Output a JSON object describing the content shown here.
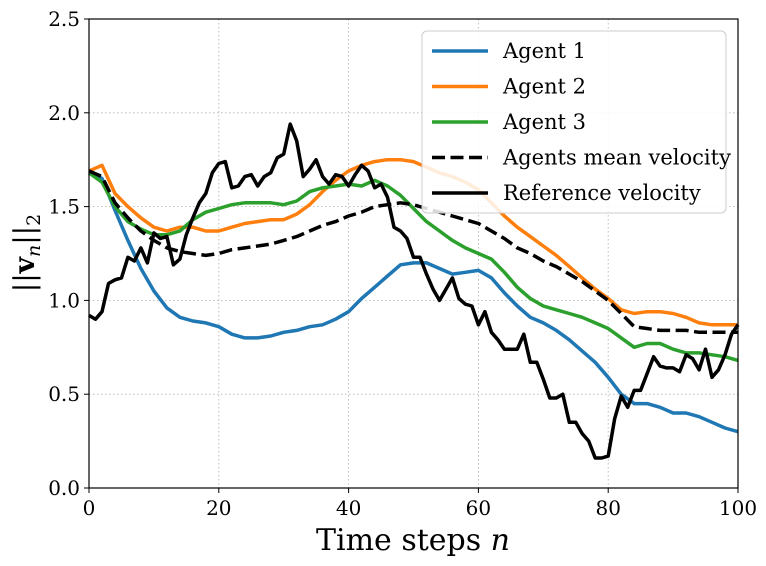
{
  "chart_data": {
    "type": "line",
    "title": "",
    "xlabel": "Time steps n",
    "ylabel": "||v_n||_2",
    "xlim": [
      0,
      100
    ],
    "ylim": [
      0,
      2.5
    ],
    "xticks": [
      0,
      20,
      40,
      60,
      80,
      100
    ],
    "yticks": [
      0.0,
      0.5,
      1.0,
      1.5,
      2.0,
      2.5
    ],
    "xtick_labels": [
      "0",
      "20",
      "40",
      "60",
      "80",
      "100"
    ],
    "ytick_labels": [
      "0.0",
      "0.5",
      "1.0",
      "1.5",
      "2.0",
      "2.5"
    ],
    "grid": true,
    "legend_position": "top-right",
    "series": [
      {
        "name": "Agent 1",
        "color": "#1f77b4",
        "dash": "solid",
        "points": [
          [
            0,
            1.69
          ],
          [
            2,
            1.65
          ],
          [
            4,
            1.48
          ],
          [
            6,
            1.32
          ],
          [
            8,
            1.17
          ],
          [
            10,
            1.05
          ],
          [
            12,
            0.96
          ],
          [
            14,
            0.91
          ],
          [
            16,
            0.89
          ],
          [
            18,
            0.88
          ],
          [
            20,
            0.86
          ],
          [
            22,
            0.82
          ],
          [
            24,
            0.8
          ],
          [
            26,
            0.8
          ],
          [
            28,
            0.81
          ],
          [
            30,
            0.83
          ],
          [
            32,
            0.84
          ],
          [
            34,
            0.86
          ],
          [
            36,
            0.87
          ],
          [
            38,
            0.9
          ],
          [
            40,
            0.94
          ],
          [
            42,
            1.01
          ],
          [
            44,
            1.07
          ],
          [
            46,
            1.13
          ],
          [
            48,
            1.19
          ],
          [
            50,
            1.2
          ],
          [
            52,
            1.2
          ],
          [
            54,
            1.17
          ],
          [
            56,
            1.14
          ],
          [
            58,
            1.15
          ],
          [
            60,
            1.16
          ],
          [
            62,
            1.12
          ],
          [
            64,
            1.04
          ],
          [
            66,
            0.97
          ],
          [
            68,
            0.91
          ],
          [
            70,
            0.88
          ],
          [
            72,
            0.84
          ],
          [
            74,
            0.79
          ],
          [
            76,
            0.73
          ],
          [
            78,
            0.67
          ],
          [
            80,
            0.59
          ],
          [
            82,
            0.5
          ],
          [
            84,
            0.45
          ],
          [
            86,
            0.45
          ],
          [
            88,
            0.43
          ],
          [
            90,
            0.4
          ],
          [
            92,
            0.4
          ],
          [
            94,
            0.38
          ],
          [
            96,
            0.35
          ],
          [
            98,
            0.32
          ],
          [
            100,
            0.3
          ]
        ]
      },
      {
        "name": "Agent 2",
        "color": "#ff7f0e",
        "dash": "solid",
        "points": [
          [
            0,
            1.69
          ],
          [
            2,
            1.72
          ],
          [
            4,
            1.57
          ],
          [
            6,
            1.5
          ],
          [
            8,
            1.44
          ],
          [
            10,
            1.39
          ],
          [
            12,
            1.37
          ],
          [
            14,
            1.39
          ],
          [
            16,
            1.39
          ],
          [
            18,
            1.37
          ],
          [
            20,
            1.37
          ],
          [
            22,
            1.39
          ],
          [
            24,
            1.41
          ],
          [
            26,
            1.42
          ],
          [
            28,
            1.43
          ],
          [
            30,
            1.43
          ],
          [
            32,
            1.46
          ],
          [
            34,
            1.51
          ],
          [
            36,
            1.58
          ],
          [
            38,
            1.64
          ],
          [
            40,
            1.69
          ],
          [
            42,
            1.72
          ],
          [
            44,
            1.74
          ],
          [
            46,
            1.75
          ],
          [
            48,
            1.75
          ],
          [
            50,
            1.74
          ],
          [
            52,
            1.71
          ],
          [
            54,
            1.68
          ],
          [
            56,
            1.66
          ],
          [
            58,
            1.63
          ],
          [
            60,
            1.59
          ],
          [
            62,
            1.52
          ],
          [
            64,
            1.45
          ],
          [
            66,
            1.39
          ],
          [
            68,
            1.34
          ],
          [
            70,
            1.29
          ],
          [
            72,
            1.24
          ],
          [
            74,
            1.18
          ],
          [
            76,
            1.12
          ],
          [
            78,
            1.06
          ],
          [
            80,
            1.01
          ],
          [
            82,
            0.95
          ],
          [
            84,
            0.93
          ],
          [
            86,
            0.94
          ],
          [
            88,
            0.94
          ],
          [
            90,
            0.93
          ],
          [
            92,
            0.91
          ],
          [
            94,
            0.88
          ],
          [
            96,
            0.87
          ],
          [
            98,
            0.87
          ],
          [
            100,
            0.87
          ]
        ]
      },
      {
        "name": "Agent 3",
        "color": "#2ca02c",
        "dash": "solid",
        "points": [
          [
            0,
            1.68
          ],
          [
            2,
            1.63
          ],
          [
            4,
            1.5
          ],
          [
            6,
            1.42
          ],
          [
            8,
            1.38
          ],
          [
            10,
            1.35
          ],
          [
            12,
            1.35
          ],
          [
            14,
            1.37
          ],
          [
            16,
            1.43
          ],
          [
            18,
            1.47
          ],
          [
            20,
            1.49
          ],
          [
            22,
            1.51
          ],
          [
            24,
            1.52
          ],
          [
            26,
            1.52
          ],
          [
            28,
            1.52
          ],
          [
            30,
            1.51
          ],
          [
            32,
            1.53
          ],
          [
            34,
            1.58
          ],
          [
            36,
            1.6
          ],
          [
            38,
            1.61
          ],
          [
            40,
            1.62
          ],
          [
            42,
            1.61
          ],
          [
            44,
            1.64
          ],
          [
            46,
            1.61
          ],
          [
            48,
            1.56
          ],
          [
            50,
            1.49
          ],
          [
            52,
            1.42
          ],
          [
            54,
            1.37
          ],
          [
            56,
            1.32
          ],
          [
            58,
            1.28
          ],
          [
            60,
            1.25
          ],
          [
            62,
            1.22
          ],
          [
            64,
            1.15
          ],
          [
            66,
            1.07
          ],
          [
            68,
            1.01
          ],
          [
            70,
            0.97
          ],
          [
            72,
            0.95
          ],
          [
            74,
            0.93
          ],
          [
            76,
            0.91
          ],
          [
            78,
            0.88
          ],
          [
            80,
            0.85
          ],
          [
            82,
            0.8
          ],
          [
            84,
            0.75
          ],
          [
            86,
            0.77
          ],
          [
            88,
            0.77
          ],
          [
            90,
            0.74
          ],
          [
            92,
            0.72
          ],
          [
            94,
            0.72
          ],
          [
            96,
            0.71
          ],
          [
            98,
            0.7
          ],
          [
            100,
            0.68
          ]
        ]
      },
      {
        "name": "Agents mean velocity",
        "color": "#000000",
        "dash": "dashed",
        "points": [
          [
            0,
            1.69
          ],
          [
            2,
            1.66
          ],
          [
            4,
            1.52
          ],
          [
            6,
            1.44
          ],
          [
            8,
            1.37
          ],
          [
            10,
            1.32
          ],
          [
            12,
            1.28
          ],
          [
            14,
            1.26
          ],
          [
            16,
            1.25
          ],
          [
            18,
            1.24
          ],
          [
            20,
            1.25
          ],
          [
            22,
            1.27
          ],
          [
            24,
            1.28
          ],
          [
            26,
            1.29
          ],
          [
            28,
            1.3
          ],
          [
            30,
            1.32
          ],
          [
            32,
            1.34
          ],
          [
            34,
            1.37
          ],
          [
            36,
            1.4
          ],
          [
            38,
            1.42
          ],
          [
            40,
            1.45
          ],
          [
            42,
            1.47
          ],
          [
            44,
            1.5
          ],
          [
            46,
            1.51
          ],
          [
            48,
            1.52
          ],
          [
            50,
            1.51
          ],
          [
            52,
            1.49
          ],
          [
            54,
            1.47
          ],
          [
            56,
            1.45
          ],
          [
            58,
            1.43
          ],
          [
            60,
            1.41
          ],
          [
            62,
            1.37
          ],
          [
            64,
            1.33
          ],
          [
            66,
            1.28
          ],
          [
            68,
            1.25
          ],
          [
            70,
            1.21
          ],
          [
            72,
            1.18
          ],
          [
            74,
            1.14
          ],
          [
            76,
            1.1
          ],
          [
            78,
            1.05
          ],
          [
            80,
            1.0
          ],
          [
            82,
            0.93
          ],
          [
            84,
            0.86
          ],
          [
            86,
            0.85
          ],
          [
            88,
            0.84
          ],
          [
            90,
            0.84
          ],
          [
            92,
            0.84
          ],
          [
            94,
            0.83
          ],
          [
            96,
            0.83
          ],
          [
            98,
            0.83
          ],
          [
            100,
            0.83
          ]
        ]
      },
      {
        "name": "Reference velocity",
        "color": "#000000",
        "dash": "solid",
        "points": [
          [
            0,
            0.92
          ],
          [
            1,
            0.9
          ],
          [
            2,
            0.94
          ],
          [
            3,
            1.09
          ],
          [
            4,
            1.11
          ],
          [
            5,
            1.12
          ],
          [
            6,
            1.23
          ],
          [
            7,
            1.21
          ],
          [
            8,
            1.28
          ],
          [
            9,
            1.2
          ],
          [
            10,
            1.36
          ],
          [
            11,
            1.33
          ],
          [
            12,
            1.34
          ],
          [
            13,
            1.19
          ],
          [
            14,
            1.22
          ],
          [
            15,
            1.35
          ],
          [
            16,
            1.44
          ],
          [
            17,
            1.52
          ],
          [
            18,
            1.57
          ],
          [
            19,
            1.68
          ],
          [
            20,
            1.73
          ],
          [
            21,
            1.74
          ],
          [
            22,
            1.6
          ],
          [
            23,
            1.61
          ],
          [
            24,
            1.66
          ],
          [
            25,
            1.67
          ],
          [
            26,
            1.61
          ],
          [
            27,
            1.66
          ],
          [
            28,
            1.68
          ],
          [
            29,
            1.76
          ],
          [
            30,
            1.78
          ],
          [
            31,
            1.94
          ],
          [
            32,
            1.85
          ],
          [
            33,
            1.66
          ],
          [
            34,
            1.7
          ],
          [
            35,
            1.75
          ],
          [
            36,
            1.66
          ],
          [
            37,
            1.62
          ],
          [
            38,
            1.67
          ],
          [
            39,
            1.66
          ],
          [
            40,
            1.61
          ],
          [
            41,
            1.67
          ],
          [
            42,
            1.72
          ],
          [
            43,
            1.69
          ],
          [
            44,
            1.6
          ],
          [
            45,
            1.62
          ],
          [
            46,
            1.55
          ],
          [
            47,
            1.39
          ],
          [
            48,
            1.37
          ],
          [
            49,
            1.33
          ],
          [
            50,
            1.23
          ],
          [
            51,
            1.23
          ],
          [
            52,
            1.14
          ],
          [
            53,
            1.06
          ],
          [
            54,
            1.0
          ],
          [
            55,
            1.06
          ],
          [
            56,
            1.12
          ],
          [
            57,
            1.01
          ],
          [
            58,
            0.98
          ],
          [
            59,
            0.97
          ],
          [
            60,
            0.87
          ],
          [
            61,
            0.94
          ],
          [
            62,
            0.83
          ],
          [
            63,
            0.79
          ],
          [
            64,
            0.74
          ],
          [
            65,
            0.74
          ],
          [
            66,
            0.74
          ],
          [
            67,
            0.82
          ],
          [
            68,
            0.67
          ],
          [
            69,
            0.67
          ],
          [
            70,
            0.58
          ],
          [
            71,
            0.48
          ],
          [
            72,
            0.48
          ],
          [
            73,
            0.5
          ],
          [
            74,
            0.35
          ],
          [
            75,
            0.35
          ],
          [
            76,
            0.29
          ],
          [
            77,
            0.25
          ],
          [
            78,
            0.16
          ],
          [
            79,
            0.16
          ],
          [
            80,
            0.17
          ],
          [
            81,
            0.37
          ],
          [
            82,
            0.49
          ],
          [
            83,
            0.43
          ],
          [
            84,
            0.52
          ],
          [
            85,
            0.52
          ],
          [
            86,
            0.61
          ],
          [
            87,
            0.7
          ],
          [
            88,
            0.65
          ],
          [
            89,
            0.64
          ],
          [
            90,
            0.64
          ],
          [
            91,
            0.62
          ],
          [
            92,
            0.71
          ],
          [
            93,
            0.69
          ],
          [
            94,
            0.63
          ],
          [
            95,
            0.74
          ],
          [
            96,
            0.59
          ],
          [
            97,
            0.63
          ],
          [
            98,
            0.71
          ],
          [
            99,
            0.82
          ],
          [
            100,
            0.87
          ]
        ]
      }
    ]
  }
}
